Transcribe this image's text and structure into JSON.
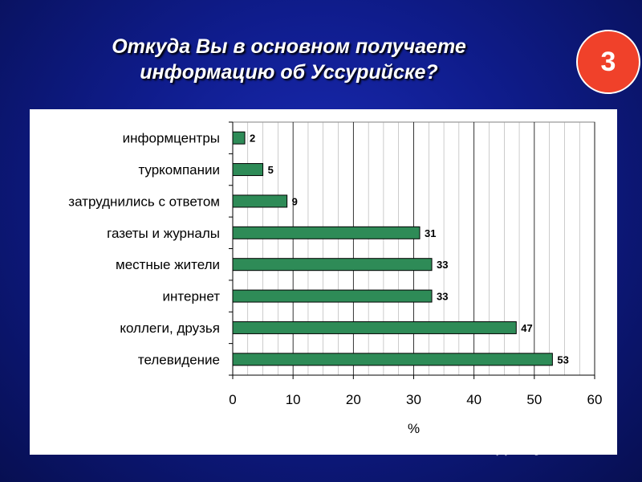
{
  "slide": {
    "title_line1": "Откуда Вы в основном получаете",
    "title_line2": "информацию об Уссурийске?",
    "badge_number": "3",
    "watermark_text": "MyShared"
  },
  "colors": {
    "bar_fill": "#2e8b57",
    "bar_stroke": "#000000",
    "badge": "#f0412a",
    "background": "#0f1c8c"
  },
  "chart_data": {
    "type": "bar",
    "orientation": "horizontal",
    "categories": [
      "информцентры",
      "туркомпании",
      "затруднились с ответом",
      "газеты и журналы",
      "местные жители",
      "интернет",
      "коллеги, друзья",
      "телевидение"
    ],
    "values": [
      2,
      5,
      9,
      31,
      33,
      33,
      47,
      53
    ],
    "xlabel": "%",
    "xlim": [
      0,
      60
    ],
    "xticks": [
      0,
      10,
      20,
      30,
      40,
      50,
      60
    ],
    "grid": "vertical",
    "data_labels": true
  }
}
